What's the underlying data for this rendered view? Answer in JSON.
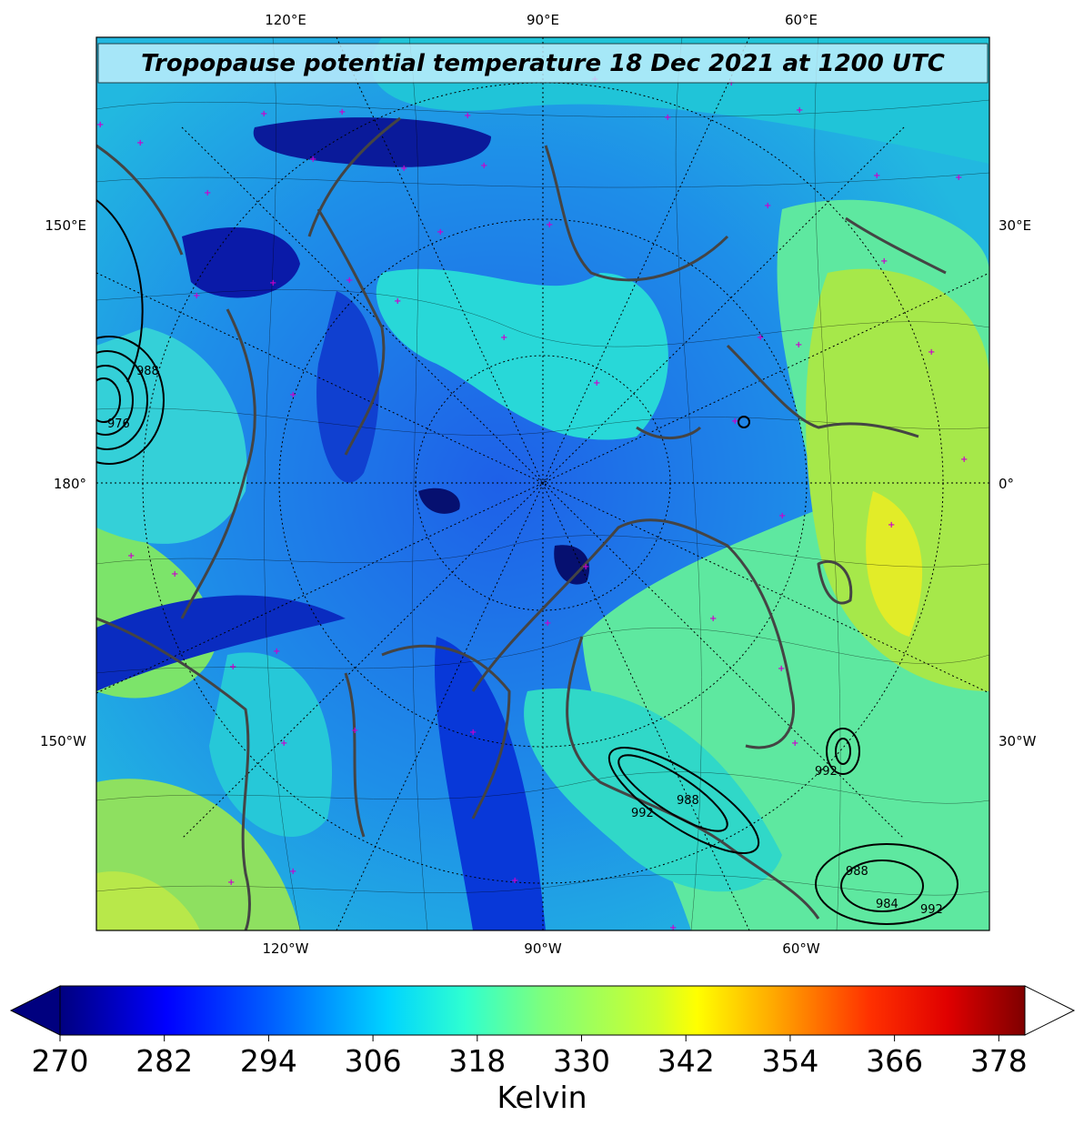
{
  "title": "Tropopause potential temperature 18 Dec 2021 at 1200 UTC",
  "map": {
    "top_labels": [
      "120°E",
      "90°E",
      "60°E"
    ],
    "bottom_labels": [
      "120°W",
      "90°W",
      "60°W"
    ],
    "left_labels": [
      "150°E",
      "180°",
      "150°W"
    ],
    "right_labels": [
      "30°E",
      "0°",
      "30°W"
    ],
    "pressure_labels": [
      "976",
      "988",
      "992",
      "984",
      "988",
      "992",
      "992",
      "988"
    ],
    "colors": {
      "coastline": "#444444",
      "marker": "#cc00cc",
      "contour": "#000000"
    }
  },
  "colorbar": {
    "ticks": [
      "270",
      "282",
      "294",
      "306",
      "318",
      "330",
      "342",
      "354",
      "366",
      "378"
    ],
    "label": "Kelvin",
    "min": 270,
    "max": 381,
    "extend": "both"
  }
}
